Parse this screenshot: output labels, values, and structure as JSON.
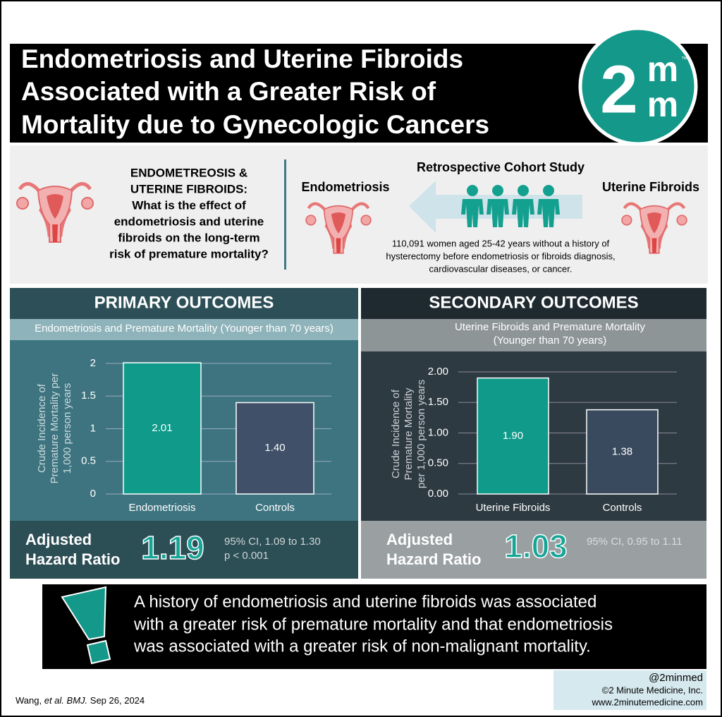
{
  "header": {
    "title_lines": [
      "Endometriosis and Uterine Fibroids",
      "Associated with a Greater Risk of",
      "Mortality due to Gynecologic Cancers"
    ],
    "logo": {
      "number": "2",
      "letters": [
        "m",
        "m"
      ],
      "mark": "™"
    }
  },
  "study": {
    "question_lines": [
      "ENDOMETREOSIS &",
      "UTERINE FIBROIDS:",
      "What is the effect of",
      "endometriosis and uterine",
      "fibroids on the long-term",
      "risk of premature mortality?"
    ],
    "design": "Retrospective Cohort Study",
    "left_group": "Endometriosis",
    "right_group": "Uterine Fibroids",
    "population_lines": [
      "110,091 women aged 25-42 years without a history of",
      "hysterectomy before endometriosis or fibroids diagnosis,",
      "cardiovascular diseases, or cancer."
    ]
  },
  "panels": [
    {
      "heading": "PRIMARY OUTCOMES",
      "hr_label": [
        "Adjusted",
        "Hazard Ratio"
      ],
      "hr": "1.19",
      "ci_lines": [
        "95% CI, 1.09 to 1.30",
        "p < 0.001"
      ]
    },
    {
      "heading": "SECONDARY OUTCOMES",
      "hr_label": [
        "Adjusted",
        "Hazard Ratio"
      ],
      "hr": "1.03",
      "ci_lines": [
        "95% CI, 0.95 to 1.11"
      ]
    }
  ],
  "chart_data": [
    {
      "type": "bar",
      "title": "Endometriosis and Premature Mortality (Younger than 70 years)",
      "y_label": [
        "Crude Incidence of",
        "Premature Mortality per",
        "1,000 person years"
      ],
      "categories": [
        "Endometriosis",
        "Controls"
      ],
      "values": [
        2.01,
        1.4
      ],
      "value_labels": [
        "2.01",
        "1.40"
      ],
      "colors": [
        "#0f9a8a",
        "#3f5068"
      ],
      "ylim": [
        0,
        2
      ],
      "yticks": [
        0,
        0.5,
        1,
        1.5,
        2
      ],
      "grid": true
    },
    {
      "type": "bar",
      "title": "Uterine Fibroids and Premature Mortality",
      "subtitle": "(Younger than 70 years)",
      "y_label": [
        "Crude Incidence of",
        "Premature Mortality",
        "per 1,000 person years"
      ],
      "categories": [
        "Uterine Fibroids",
        "Controls"
      ],
      "values": [
        1.9,
        1.38
      ],
      "value_labels": [
        "1.90",
        "1.38"
      ],
      "colors": [
        "#0f9a8a",
        "#3a4a5e"
      ],
      "ylim": [
        0,
        2
      ],
      "yticks": [
        {
          "value": 0,
          "label": "0.00"
        },
        {
          "value": 0.5,
          "label": "0.50"
        },
        {
          "value": 1,
          "label": "1.00"
        },
        {
          "value": 1.5,
          "label": "1.50"
        },
        {
          "value": 2,
          "label": "2.00"
        }
      ],
      "grid": true
    }
  ],
  "conclusion_lines": [
    "A history of endometriosis and uterine fibroids was associated",
    "with a greater risk of premature mortality and that endometriosis",
    "was associated with a greater risk of non-malignant mortality."
  ],
  "footer": {
    "citation": {
      "author": "Wang,",
      "etal": "et al.",
      "journal": "BMJ.",
      "date": "Sep 26, 2024"
    },
    "handle": "@2minmed",
    "company": "©2 Minute Medicine, Inc.",
    "website": "www.2minutemedicine.com"
  }
}
